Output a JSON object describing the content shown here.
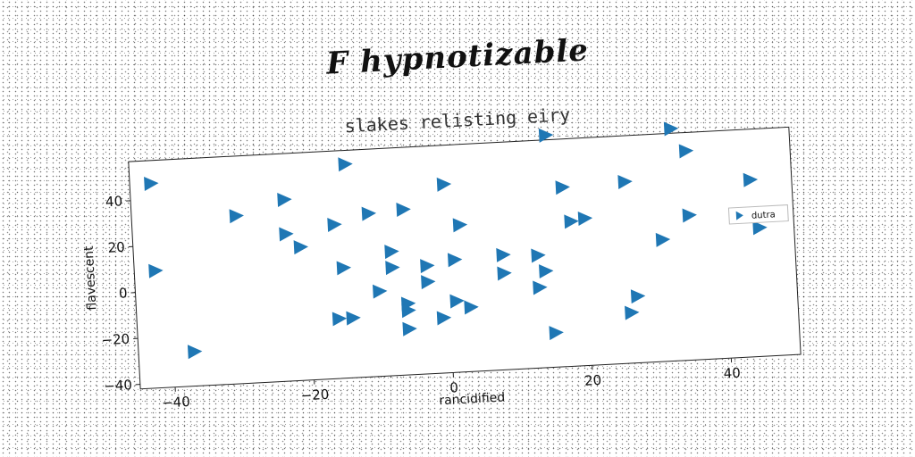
{
  "page": {
    "title": "F hypnotizable"
  },
  "chart_data": {
    "type": "scatter",
    "title": "slakes relisting eiry",
    "xlabel": "rancidified",
    "ylabel": "flavescent",
    "xlim": [
      -45,
      50
    ],
    "ylim": [
      -42,
      57
    ],
    "xticks": [
      -40,
      -20,
      0,
      20,
      40
    ],
    "yticks": [
      -40,
      -20,
      0,
      20,
      40
    ],
    "grid": false,
    "legend_position": "right",
    "marker": "triangle-right",
    "color": "#1f77b4",
    "series": [
      {
        "name": "dutra",
        "points": [
          {
            "x": -42,
            "y": 47
          },
          {
            "x": -42,
            "y": 9
          },
          {
            "x": -37,
            "y": -27
          },
          {
            "x": -30,
            "y": 31
          },
          {
            "x": -23,
            "y": 37
          },
          {
            "x": -23,
            "y": 22
          },
          {
            "x": -21,
            "y": 16
          },
          {
            "x": -16,
            "y": 25
          },
          {
            "x": -14,
            "y": 51
          },
          {
            "x": -15,
            "y": 6
          },
          {
            "x": -16,
            "y": -16
          },
          {
            "x": -14,
            "y": -16
          },
          {
            "x": -11,
            "y": 29
          },
          {
            "x": -10,
            "y": -5
          },
          {
            "x": -8,
            "y": 12
          },
          {
            "x": -8,
            "y": 5
          },
          {
            "x": -6,
            "y": 30
          },
          {
            "x": -6,
            "y": -11
          },
          {
            "x": -6,
            "y": -14
          },
          {
            "x": -6,
            "y": -22
          },
          {
            "x": -3,
            "y": 5
          },
          {
            "x": -3,
            "y": -2
          },
          {
            "x": 0,
            "y": 40
          },
          {
            "x": 1,
            "y": 7
          },
          {
            "x": 1,
            "y": -11
          },
          {
            "x": 2,
            "y": 22
          },
          {
            "x": -1,
            "y": -18
          },
          {
            "x": 3,
            "y": -14
          },
          {
            "x": 8,
            "y": 8
          },
          {
            "x": 8,
            "y": 0
          },
          {
            "x": 13,
            "y": 7
          },
          {
            "x": 14,
            "y": 0
          },
          {
            "x": 13,
            "y": -7
          },
          {
            "x": 15,
            "y": 59
          },
          {
            "x": 17,
            "y": 36
          },
          {
            "x": 18,
            "y": 21
          },
          {
            "x": 20,
            "y": 22
          },
          {
            "x": 15,
            "y": -27
          },
          {
            "x": 26,
            "y": 37
          },
          {
            "x": 26,
            "y": -20
          },
          {
            "x": 27,
            "y": -13
          },
          {
            "x": 31,
            "y": 11
          },
          {
            "x": 33,
            "y": 59
          },
          {
            "x": 35,
            "y": 49
          },
          {
            "x": 35,
            "y": 21
          },
          {
            "x": 44,
            "y": 35
          },
          {
            "x": 45,
            "y": 14
          }
        ]
      }
    ]
  }
}
